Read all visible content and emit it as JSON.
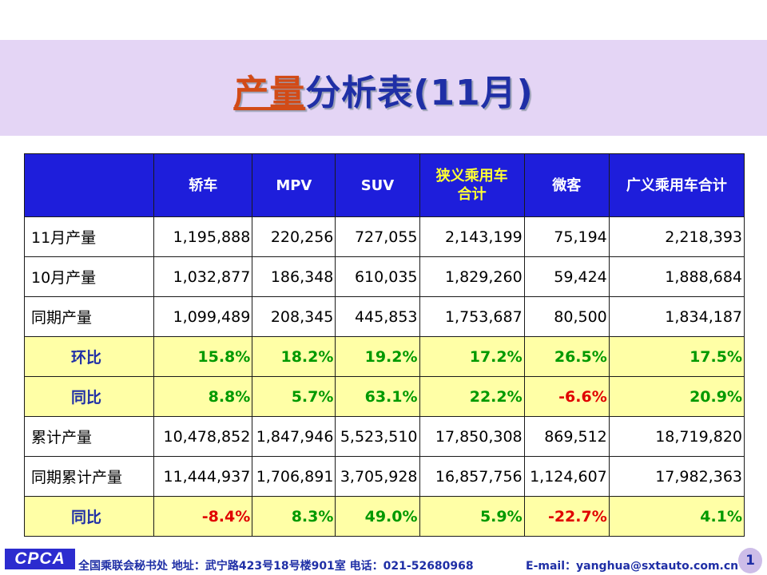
{
  "title": {
    "highlight": "产量",
    "rest": "分析表(11月)"
  },
  "table": {
    "headers": [
      "",
      "轿车",
      "MPV",
      "SUV",
      "狭义乘用车\n合计",
      "微客",
      "广义乘用车合计"
    ],
    "rows": [
      {
        "label": "11月产量",
        "cells": [
          "1,195,888",
          "220,256",
          "727,055",
          "2,143,199",
          "75,194",
          "2,218,393"
        ]
      },
      {
        "label": "10月产量",
        "cells": [
          "1,032,877",
          "186,348",
          "610,035",
          "1,829,260",
          "59,424",
          "1,888,684"
        ]
      },
      {
        "label": "同期产量",
        "cells": [
          "1,099,489",
          "208,345",
          "445,853",
          "1,753,687",
          "80,500",
          "1,834,187"
        ]
      },
      {
        "label": "环比",
        "cells": [
          "15.8%",
          "18.2%",
          "19.2%",
          "17.2%",
          "26.5%",
          "17.5%"
        ]
      },
      {
        "label": "同比",
        "cells": [
          "8.8%",
          "5.7%",
          "63.1%",
          "22.2%",
          "-6.6%",
          "20.9%"
        ]
      },
      {
        "label": "累计产量",
        "cells": [
          "10,478,852",
          "1,847,946",
          "5,523,510",
          "17,850,308",
          "869,512",
          "18,719,820"
        ]
      },
      {
        "label": "同期累计产量",
        "cells": [
          "11,444,937",
          "1,706,891",
          "3,705,928",
          "16,857,756",
          "1,124,607",
          "17,982,363"
        ]
      },
      {
        "label": "同比",
        "cells": [
          "-8.4%",
          "8.3%",
          "49.0%",
          "5.9%",
          "-22.7%",
          "4.1%"
        ]
      }
    ]
  },
  "colors": {
    "header_bg": "#1e1edb",
    "ratio_bg": "#ffffa6",
    "positive": "#009900",
    "negative": "#e00000",
    "title": "#1f2fa6",
    "title_highlight": "#d24b17"
  },
  "footer": {
    "logo": "CPCA",
    "address": "全国乘联会秘书处  地址：武宁路423号18号楼901室   电话：021-52680968",
    "email": "E-mail：yanghua@sxtauto.com.cn",
    "page": "1"
  }
}
